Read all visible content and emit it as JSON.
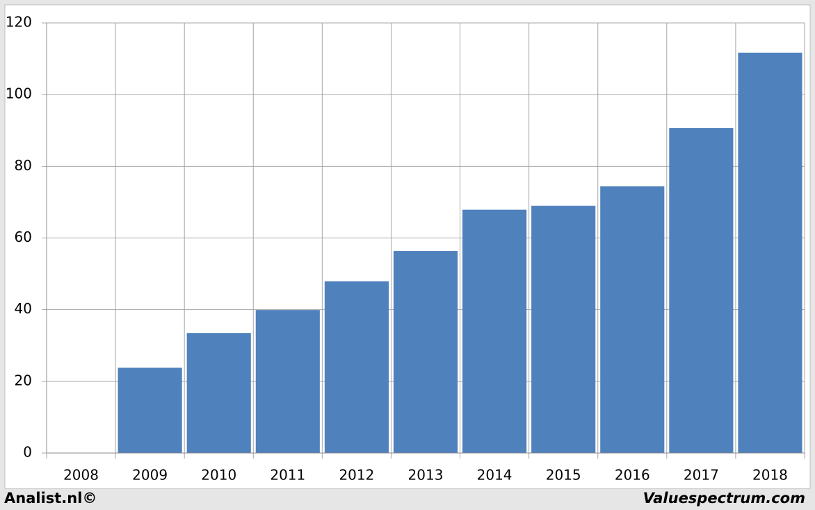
{
  "chart_data": {
    "type": "bar",
    "categories": [
      "2008",
      "2009",
      "2010",
      "2011",
      "2012",
      "2013",
      "2014",
      "2015",
      "2016",
      "2017",
      "2018"
    ],
    "values": [
      null,
      23.8,
      33.5,
      39.9,
      47.9,
      56.4,
      67.9,
      69.0,
      74.4,
      90.7,
      111.7
    ],
    "color": "#4f81bd",
    "ylim": [
      0,
      120
    ],
    "yticks": [
      0,
      20,
      40,
      60,
      80,
      100,
      120
    ],
    "grid": true
  },
  "footer_left": "Analist.nl©",
  "footer_right": "Valuespectrum.com"
}
